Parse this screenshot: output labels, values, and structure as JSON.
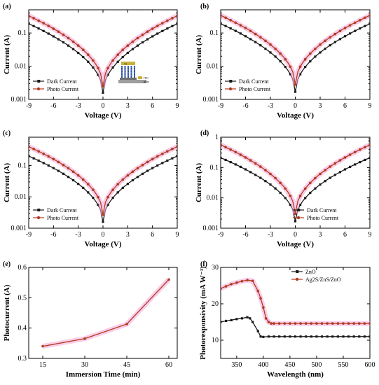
{
  "colors": {
    "dark": "#1a1a1a",
    "photo": "#b23a1f",
    "halo": "#f4a6d9",
    "line_panel_e": "#b23a1f"
  },
  "chart_data": [
    {
      "id": "a",
      "label": "(a)",
      "type": "line",
      "yscale": "log",
      "xlabel": "Voltage (V)",
      "ylabel": "Current (A)",
      "xlim": [
        -9,
        9
      ],
      "ylim": [
        0.001,
        0.5
      ],
      "xticks": [
        -9,
        -6,
        -3,
        0,
        3,
        6,
        9
      ],
      "yticks": [
        0.001,
        0.01,
        0.1
      ],
      "ytick_labels": [
        "0.001",
        "0.01",
        "0.1"
      ],
      "legend": "bottom-left",
      "inset": true,
      "inset_labels": [
        "ITO",
        "glass",
        "Ag"
      ],
      "series": [
        {
          "name": "Dark Current",
          "role": "dark",
          "I9": 0.19,
          "Imin": 0.0016
        },
        {
          "name": "Photo Current",
          "role": "photo",
          "I9": 0.33,
          "Imin": 0.0025
        }
      ]
    },
    {
      "id": "b",
      "label": "(b)",
      "type": "line",
      "yscale": "log",
      "xlabel": "Voltage (V)",
      "ylabel": "Current (A)",
      "xlim": [
        -9,
        9
      ],
      "ylim": [
        0.001,
        0.5
      ],
      "xticks": [
        -9,
        -6,
        -3,
        0,
        3,
        6,
        9
      ],
      "yticks": [
        0.001,
        0.01,
        0.1
      ],
      "ytick_labels": [
        "0.001",
        "0.01",
        "0.1"
      ],
      "legend": "bottom-left",
      "series": [
        {
          "name": "Dark Current",
          "role": "dark",
          "I9": 0.19,
          "Imin": 0.0017
        },
        {
          "name": "Photo Current",
          "role": "photo",
          "I9": 0.34,
          "Imin": 0.0028
        }
      ]
    },
    {
      "id": "c",
      "label": "(c)",
      "type": "line",
      "yscale": "log",
      "xlabel": "Voltage (V)",
      "ylabel": "Current (A)",
      "xlim": [
        -9,
        9
      ],
      "ylim": [
        0.001,
        0.8
      ],
      "xticks": [
        -9,
        -6,
        -3,
        0,
        3,
        6,
        9
      ],
      "yticks": [
        0.001,
        0.01,
        0.1
      ],
      "ytick_labels": [
        "0.001",
        "0.01",
        "0.1"
      ],
      "legend": "bottom-left",
      "series": [
        {
          "name": "Dark Current",
          "role": "dark",
          "I9": 0.2,
          "Imin": 0.0016
        },
        {
          "name": "Photo Current",
          "role": "photo",
          "I9": 0.4,
          "Imin": 0.0027
        }
      ]
    },
    {
      "id": "d",
      "label": "(d)",
      "type": "line",
      "yscale": "log",
      "xlabel": "Voltage (V)",
      "ylabel": "Current (A)",
      "xlim": [
        -9,
        9
      ],
      "ylim": [
        0.001,
        1
      ],
      "xticks": [
        -9,
        -6,
        -3,
        0,
        3,
        6,
        9
      ],
      "yticks": [
        0.001,
        0.01,
        0.1,
        1
      ],
      "ytick_labels": [
        "0.001",
        "0.01",
        "0.1",
        "1"
      ],
      "legend": "bottom-right",
      "series": [
        {
          "name": "Dark Current",
          "role": "dark",
          "I9": 0.21,
          "Imin": 0.0017
        },
        {
          "name": "Photo Current",
          "role": "photo",
          "I9": 0.56,
          "Imin": 0.003
        }
      ]
    },
    {
      "id": "e",
      "label": "(e)",
      "type": "line",
      "xlabel": "Immersion Time (min)",
      "ylabel": "Photocurrent (A)",
      "xlim": [
        10,
        63
      ],
      "ylim": [
        0.3,
        0.6
      ],
      "xticks": [
        15,
        30,
        45,
        60
      ],
      "yticks": [
        0.3,
        0.4,
        0.5,
        0.6
      ],
      "ytick_labels": [
        "0.3",
        "0.4",
        "0.5",
        "0.6"
      ],
      "x": [
        15,
        30,
        45,
        60
      ],
      "series": [
        {
          "name": "",
          "role": "line_panel_e",
          "values": [
            0.34,
            0.365,
            0.413,
            0.56
          ]
        }
      ]
    },
    {
      "id": "f",
      "label": "(f)",
      "type": "line",
      "xlabel": "Wavelength (nm)",
      "ylabel": "Photoresponsivity (mA W⁻¹)",
      "xlim": [
        320,
        600
      ],
      "ylim": [
        5,
        30
      ],
      "xticks": [
        350,
        400,
        450,
        500,
        550,
        600
      ],
      "yticks": [
        10,
        20,
        30
      ],
      "ytick_labels": [
        "10",
        "20",
        "30"
      ],
      "legend": "top-right",
      "series": [
        {
          "name": "ZnO",
          "role": "dark",
          "x": [
            320,
            330,
            340,
            350,
            360,
            370,
            375,
            380,
            390,
            395,
            400,
            410,
            420,
            430,
            440,
            450,
            460,
            470,
            480,
            490,
            500,
            510,
            520,
            530,
            540,
            550,
            560,
            570,
            580,
            590,
            600
          ],
          "values": [
            15.0,
            15.3,
            15.5,
            15.8,
            16.0,
            16.3,
            16.0,
            15.0,
            12.5,
            11.0,
            10.9,
            11.0,
            11.0,
            11.0,
            11.0,
            11.0,
            11.0,
            11.0,
            11.0,
            11.0,
            11.0,
            11.0,
            11.0,
            11.0,
            11.0,
            11.0,
            11.0,
            11.0,
            11.0,
            11.0,
            11.0
          ]
        },
        {
          "name": "Ag2S/ZnS/ZnO",
          "role": "photo",
          "x": [
            320,
            330,
            340,
            350,
            360,
            370,
            380,
            390,
            395,
            400,
            405,
            410,
            415,
            420,
            430,
            440,
            450,
            460,
            470,
            480,
            490,
            500,
            510,
            520,
            530,
            540,
            550,
            560,
            570,
            580,
            590,
            600
          ],
          "values": [
            24.2,
            24.8,
            25.4,
            25.8,
            26.2,
            26.5,
            26.3,
            23.5,
            21.5,
            19.0,
            16.0,
            15.0,
            14.6,
            14.6,
            14.6,
            14.6,
            14.6,
            14.6,
            14.6,
            14.6,
            14.6,
            14.6,
            14.6,
            14.6,
            14.6,
            14.6,
            14.6,
            14.6,
            14.6,
            14.6,
            14.6,
            14.6
          ]
        }
      ]
    }
  ]
}
